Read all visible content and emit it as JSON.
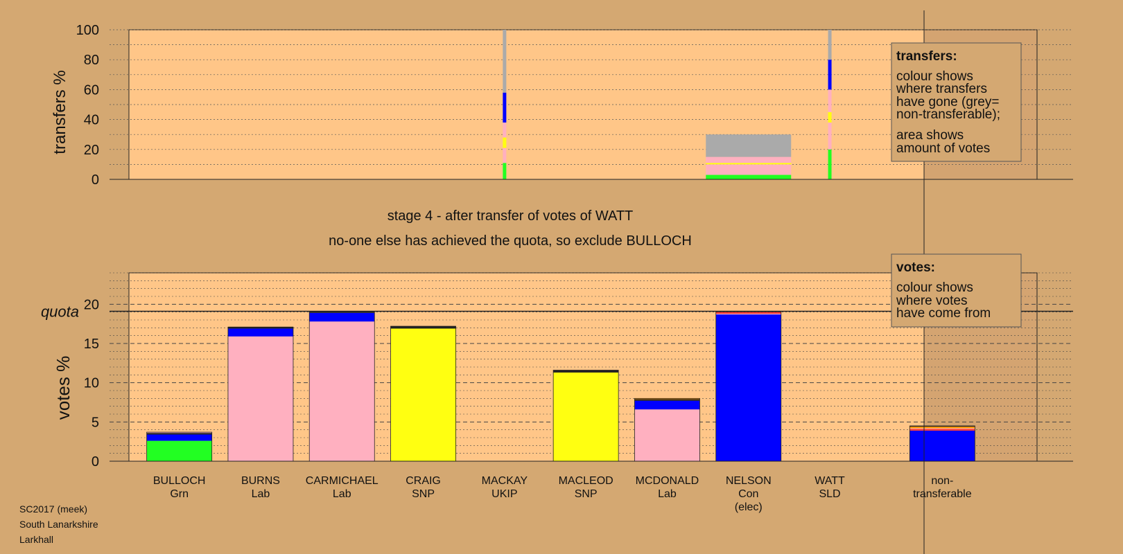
{
  "colors": {
    "background": "#d4a872",
    "plot_area": "#ffc688",
    "legend_box": "#d4a872",
    "green": "#22ff22",
    "pink": "#ffb0c0",
    "yellow": "#ffff11",
    "blue": "#0000ff",
    "grey": "#aaaaaa",
    "red": "#ff3333",
    "black": "#222222",
    "orange": "#ff9900"
  },
  "stage_line1": "stage 4 - after transfer of votes of WATT",
  "stage_line2": "no-one else has achieved the quota, so exclude BULLOCH",
  "footer": [
    "SC2017 (meek)",
    "South Lanarkshire",
    "Larkhall"
  ],
  "legend_transfers": {
    "title": "transfers:",
    "lines": [
      "colour shows",
      "where transfers",
      "have gone (grey=",
      "non-transferable);",
      "area shows",
      "amount of votes"
    ]
  },
  "legend_votes": {
    "title": "votes:",
    "lines": [
      "colour shows",
      "where votes",
      "have come from"
    ]
  },
  "quota_label": "quota",
  "chart_data": [
    {
      "type": "bar",
      "ylabel": "transfers %",
      "ylim": [
        0,
        100
      ],
      "yticks": [
        0,
        20,
        40,
        60,
        80,
        100
      ],
      "grid": true,
      "legend_position": "top-right",
      "bars": [
        {
          "category": "MACKAY",
          "width_pct": 1,
          "segments": [
            {
              "color": "green",
              "value": 11
            },
            {
              "color": "pink",
              "value": 10
            },
            {
              "color": "yellow",
              "value": 7
            },
            {
              "color": "pink",
              "value": 10
            },
            {
              "color": "blue",
              "value": 20
            },
            {
              "color": "grey",
              "value": 42
            }
          ]
        },
        {
          "category": "NELSON",
          "width_pct": 30,
          "segments": [
            {
              "color": "green",
              "value": 3
            },
            {
              "color": "pink",
              "value": 7
            },
            {
              "color": "yellow",
              "value": 1
            },
            {
              "color": "pink",
              "value": 4
            },
            {
              "color": "grey",
              "value": 15
            }
          ]
        },
        {
          "category": "WATT",
          "width_pct": 1,
          "segments": [
            {
              "color": "green",
              "value": 20
            },
            {
              "color": "pink",
              "value": 18
            },
            {
              "color": "yellow",
              "value": 7
            },
            {
              "color": "pink",
              "value": 15
            },
            {
              "color": "blue",
              "value": 20
            },
            {
              "color": "grey",
              "value": 20
            }
          ]
        }
      ]
    },
    {
      "type": "bar",
      "ylabel": "votes %",
      "ylim": [
        0,
        24
      ],
      "yticks": [
        0,
        5,
        10,
        15,
        20
      ],
      "quota": 19.1,
      "grid": true,
      "legend_position": "top-right",
      "categories": [
        "BULLOCH",
        "BURNS",
        "CARMICHAEL",
        "CRAIG",
        "MACKAY",
        "MACLEOD",
        "MCDONALD",
        "NELSON",
        "WATT",
        "non-"
      ],
      "sublabels": [
        [
          "Grn"
        ],
        [
          "Lab"
        ],
        [
          "Lab"
        ],
        [
          "SNP"
        ],
        [
          "UKIP"
        ],
        [
          "SNP"
        ],
        [
          "Lab"
        ],
        [
          "Con",
          "(elec)"
        ],
        [
          "SLD"
        ],
        [
          "transferable"
        ]
      ],
      "stacks": [
        [
          {
            "color": "green",
            "value": 2.6
          },
          {
            "color": "blue",
            "value": 0.8
          },
          {
            "color": "black",
            "value": 0.2
          },
          {
            "color": "pink",
            "value": 0.1
          }
        ],
        [
          {
            "color": "pink",
            "value": 15.9
          },
          {
            "color": "blue",
            "value": 1.0
          },
          {
            "color": "black",
            "value": 0.2
          }
        ],
        [
          {
            "color": "pink",
            "value": 17.8
          },
          {
            "color": "blue",
            "value": 1.1
          },
          {
            "color": "black",
            "value": 0.2
          }
        ],
        [
          {
            "color": "yellow",
            "value": 16.9
          },
          {
            "color": "black",
            "value": 0.3
          }
        ],
        [],
        [
          {
            "color": "yellow",
            "value": 11.3
          },
          {
            "color": "black",
            "value": 0.3
          }
        ],
        [
          {
            "color": "pink",
            "value": 6.6
          },
          {
            "color": "blue",
            "value": 1.1
          },
          {
            "color": "black",
            "value": 0.2
          },
          {
            "color": "orange",
            "value": 0.1
          }
        ],
        [
          {
            "color": "blue",
            "value": 18.7
          },
          {
            "color": "pink",
            "value": 0.1
          },
          {
            "color": "red",
            "value": 0.2
          },
          {
            "color": "black",
            "value": 0.1
          }
        ],
        [],
        [
          {
            "color": "blue",
            "value": 3.9
          },
          {
            "color": "red",
            "value": 0.2
          },
          {
            "color": "pink",
            "value": 0.1
          },
          {
            "color": "orange",
            "value": 0.2
          },
          {
            "color": "black",
            "value": 0.1
          }
        ]
      ]
    }
  ]
}
